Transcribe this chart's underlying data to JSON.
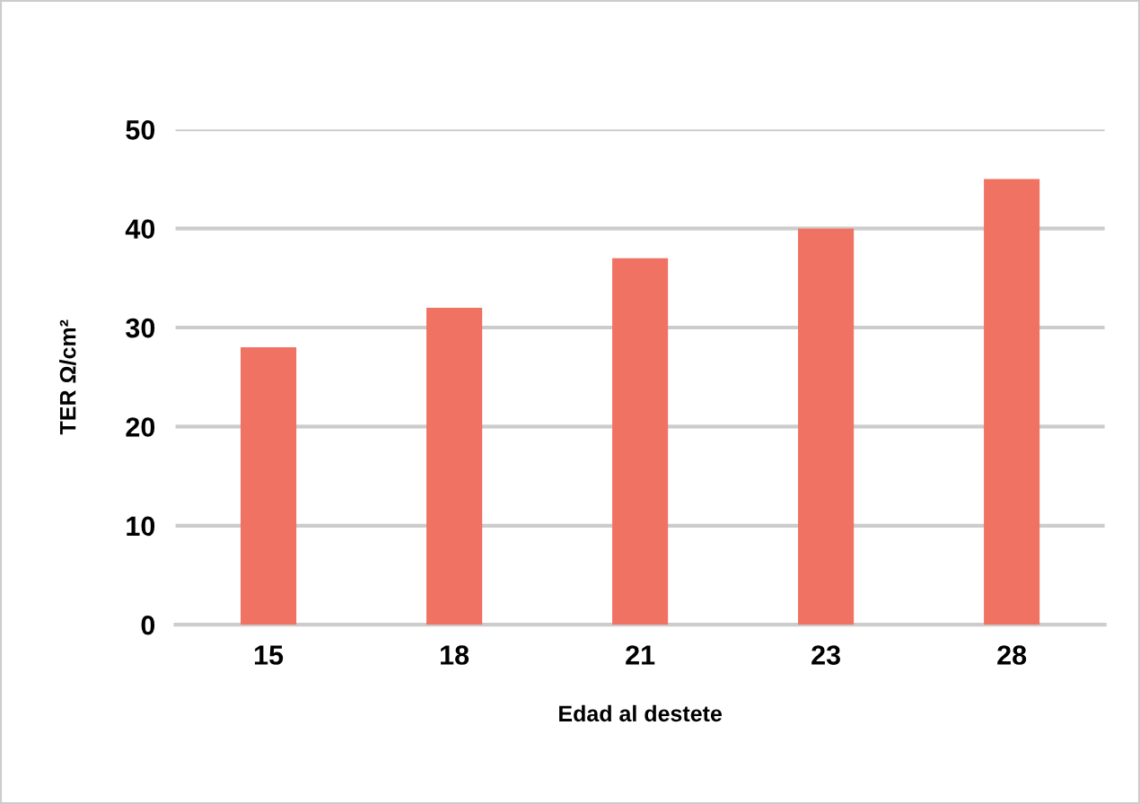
{
  "chart_data": {
    "type": "bar",
    "xlabel": "Edad al destete",
    "ylabel": "TER Ω/cm²",
    "categories": [
      "15",
      "18",
      "21",
      "23",
      "28"
    ],
    "values": [
      28,
      32,
      37,
      40,
      45
    ],
    "color": "#f07262",
    "ylim": [
      0,
      50
    ],
    "yticks": [
      0,
      10,
      20,
      30,
      40,
      50
    ],
    "grid": "y",
    "legend": false
  }
}
